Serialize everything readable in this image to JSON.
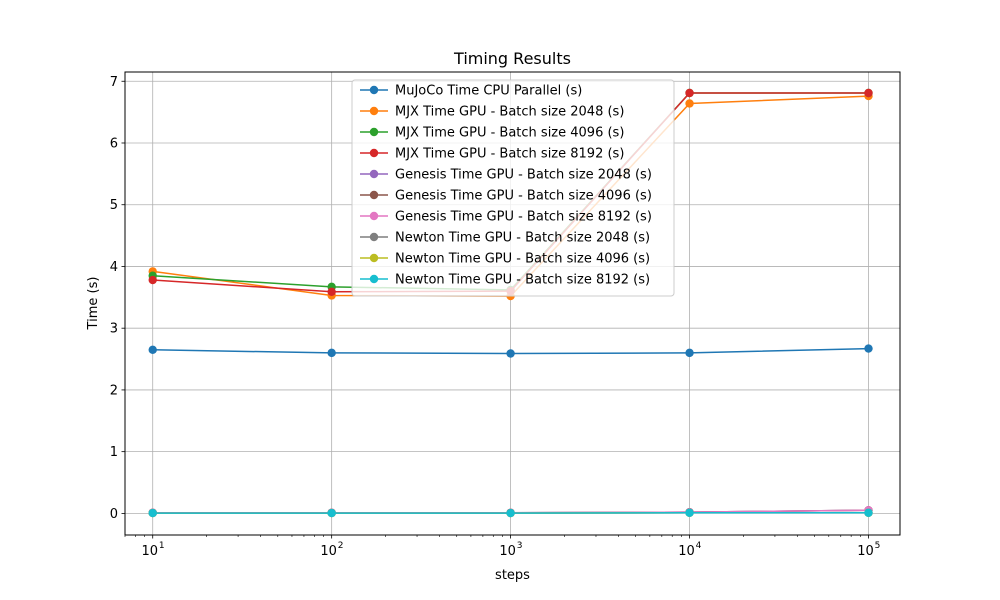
{
  "chart_data": {
    "type": "line",
    "title": "Timing Results",
    "xlabel": "steps",
    "ylabel": "Time (s)",
    "xscale": "log",
    "x": [
      10,
      100,
      1000,
      10000,
      100000
    ],
    "xlim": [
      7,
      150000
    ],
    "ylim": [
      -0.35,
      7.15
    ],
    "xticks": [
      {
        "value": 10,
        "base": "10",
        "exp": "1"
      },
      {
        "value": 100,
        "base": "10",
        "exp": "2"
      },
      {
        "value": 1000,
        "base": "10",
        "exp": "3"
      },
      {
        "value": 10000,
        "base": "10",
        "exp": "4"
      },
      {
        "value": 100000,
        "base": "10",
        "exp": "5"
      }
    ],
    "yticks": [
      0,
      1,
      2,
      3,
      4,
      5,
      6,
      7
    ],
    "grid": true,
    "legend_position": "upper-center",
    "series": [
      {
        "name": "MuJoCo Time CPU Parallel (s)",
        "color": "#1f77b4",
        "values": [
          2.65,
          2.6,
          2.59,
          2.6,
          2.67
        ]
      },
      {
        "name": "MJX Time GPU - Batch size 2048 (s)",
        "color": "#ff7f0e",
        "values": [
          3.92,
          3.53,
          3.52,
          6.64,
          6.76
        ]
      },
      {
        "name": "MJX Time GPU - Batch size 4096 (s)",
        "color": "#2ca02c",
        "values": [
          3.85,
          3.67,
          3.62,
          6.81,
          6.81
        ]
      },
      {
        "name": "MJX Time GPU - Batch size 8192 (s)",
        "color": "#d62728",
        "values": [
          3.78,
          3.59,
          3.6,
          6.81,
          6.81
        ]
      },
      {
        "name": "Genesis Time GPU - Batch size 2048 (s)",
        "color": "#9467bd",
        "values": [
          0.01,
          0.01,
          0.01,
          0.02,
          0.05
        ]
      },
      {
        "name": "Genesis Time GPU - Batch size 4096 (s)",
        "color": "#8c564b",
        "values": [
          0.01,
          0.01,
          0.01,
          0.02,
          0.05
        ]
      },
      {
        "name": "Genesis Time GPU - Batch size 8192 (s)",
        "color": "#e377c2",
        "values": [
          0.01,
          0.01,
          0.01,
          0.02,
          0.05
        ]
      },
      {
        "name": "Newton Time GPU - Batch size 2048 (s)",
        "color": "#7f7f7f",
        "values": [
          0.005,
          0.005,
          0.005,
          0.01,
          0.01
        ]
      },
      {
        "name": "Newton Time GPU - Batch size 4096 (s)",
        "color": "#bcbd22",
        "values": [
          0.005,
          0.005,
          0.005,
          0.01,
          0.01
        ]
      },
      {
        "name": "Newton Time GPU - Batch size 8192 (s)",
        "color": "#17becf",
        "values": [
          0.005,
          0.005,
          0.005,
          0.01,
          0.01
        ]
      }
    ]
  }
}
